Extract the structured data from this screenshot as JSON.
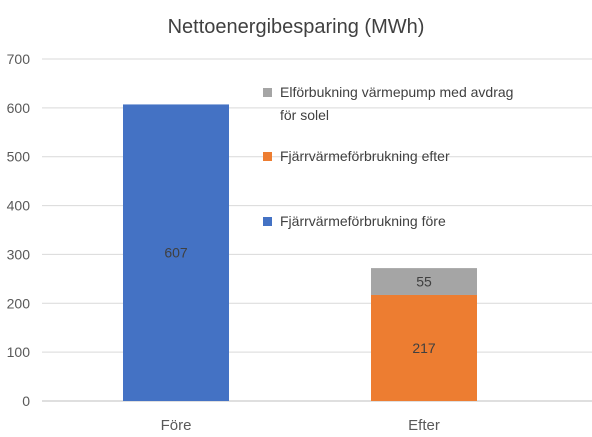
{
  "chart_data": {
    "type": "bar",
    "stacked": true,
    "title": "Nettoenergibesparing (MWh)",
    "xlabel": "",
    "ylabel": "",
    "categories": [
      "Före",
      "Efter"
    ],
    "ylim": [
      0,
      700
    ],
    "yticks": [
      0,
      100,
      200,
      300,
      400,
      500,
      600,
      700
    ],
    "grid": true,
    "legend_position": "right",
    "series": [
      {
        "name": "Fjärrvärmeförbrukning före",
        "values": [
          607,
          null
        ],
        "color": "#4472C4"
      },
      {
        "name": "Fjärrvärmeförbrukning efter",
        "values": [
          null,
          217
        ],
        "color": "#ED7D31"
      },
      {
        "name": "Elförbukning värmepump med avdrag för solel",
        "values": [
          null,
          55
        ],
        "color": "#A5A5A5"
      }
    ],
    "legend": [
      {
        "lines": [
          "Elförbukning värmepump med avdrag",
          "för solel"
        ],
        "color": "#A5A5A5"
      },
      {
        "lines": [
          "Fjärrvärmeförbrukning efter"
        ],
        "color": "#ED7D31"
      },
      {
        "lines": [
          "Fjärrvärmeförbrukning före"
        ],
        "color": "#4472C4"
      }
    ]
  }
}
